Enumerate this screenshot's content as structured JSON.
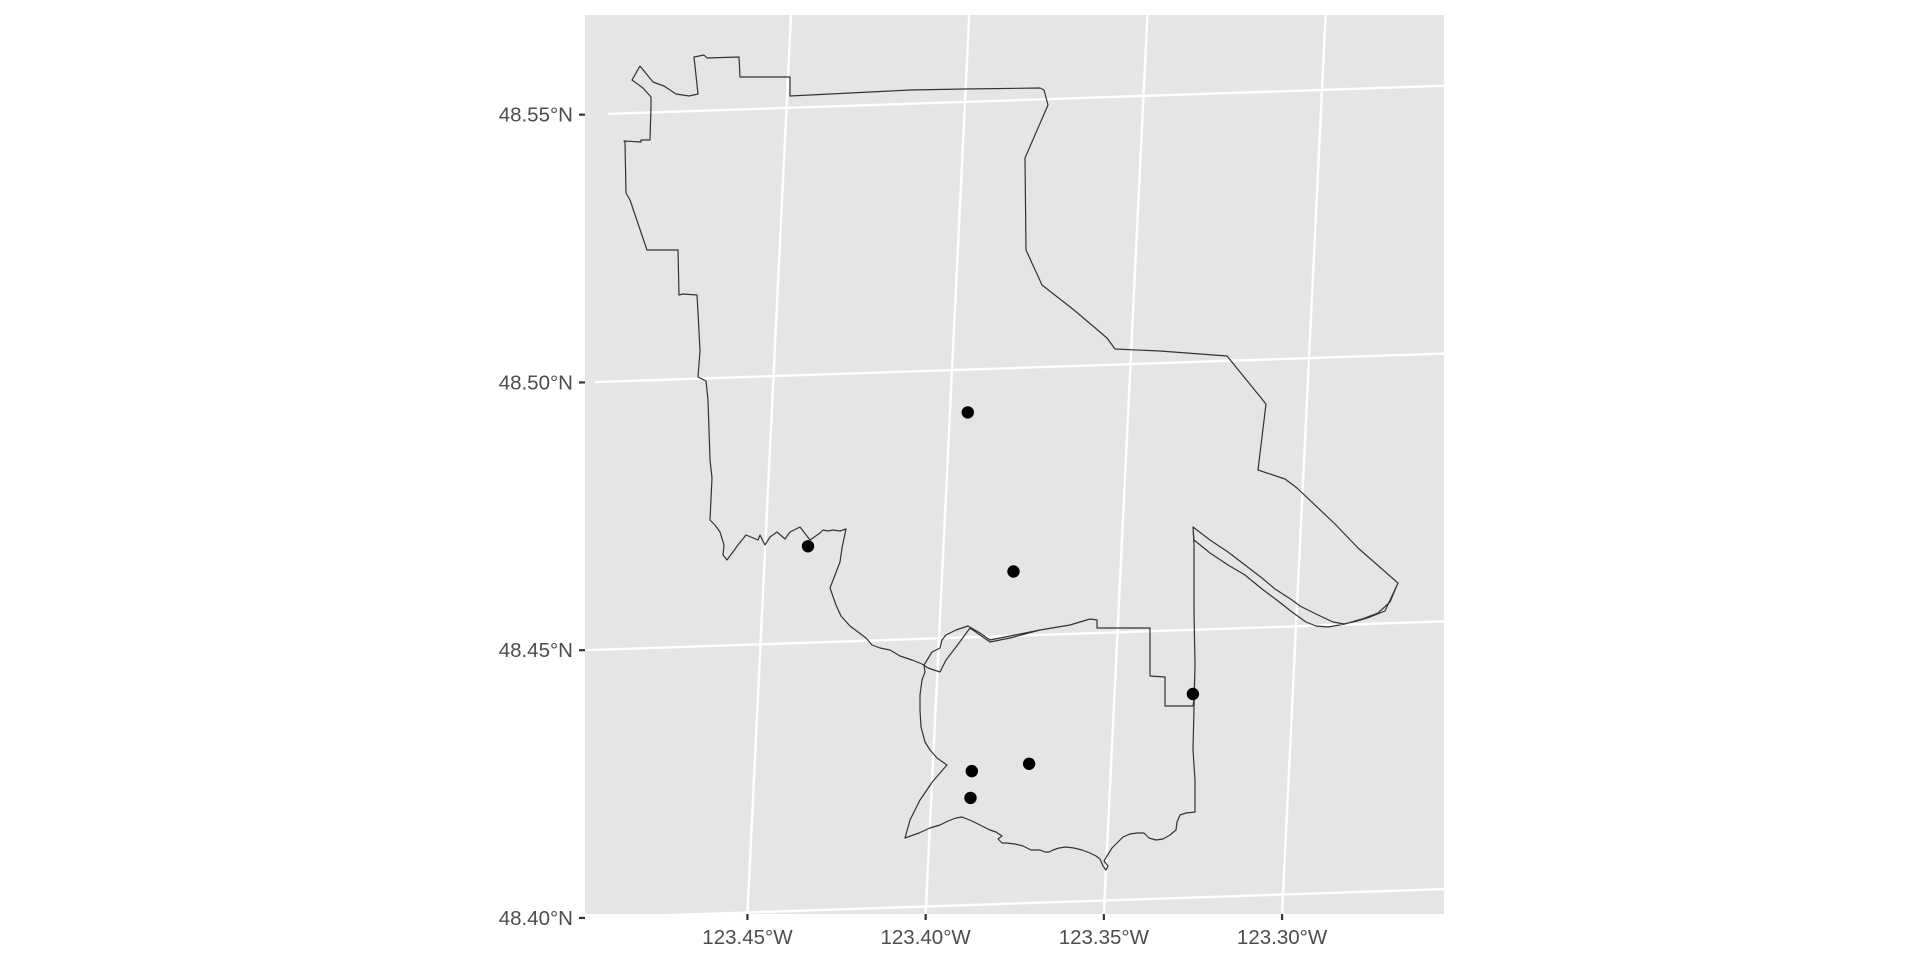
{
  "map": {
    "panel_background": "#e5e5e5",
    "grid_color": "#ffffff",
    "boundary_color": "#333333",
    "point_color": "#000000",
    "y_ticks": [
      {
        "value": 48.55,
        "label": "48.55°N"
      },
      {
        "value": 48.5,
        "label": "48.50°N"
      },
      {
        "value": 48.45,
        "label": "48.45°N"
      },
      {
        "value": 48.4,
        "label": "48.40°N"
      }
    ],
    "x_ticks": [
      {
        "value": -123.45,
        "label": "123.45°W"
      },
      {
        "value": -123.4,
        "label": "123.40°W"
      },
      {
        "value": -123.35,
        "label": "123.35°W"
      },
      {
        "value": -123.3,
        "label": "123.30°W"
      }
    ]
  },
  "chart_data": {
    "type": "scatter",
    "title": "",
    "xlabel": "",
    "ylabel": "",
    "xlim": [
      -123.495,
      -123.255
    ],
    "ylim": [
      48.398,
      48.568
    ],
    "grid": true,
    "legend": "none",
    "points": [
      {
        "x": -123.395,
        "y": 48.492
      },
      {
        "x": -123.438,
        "y": 48.468
      },
      {
        "x": -123.38,
        "y": 48.462
      },
      {
        "x": -123.328,
        "y": 48.438
      },
      {
        "x": -123.373,
        "y": 48.426
      },
      {
        "x": -123.389,
        "y": 48.425
      },
      {
        "x": -123.389,
        "y": 48.42
      }
    ]
  }
}
